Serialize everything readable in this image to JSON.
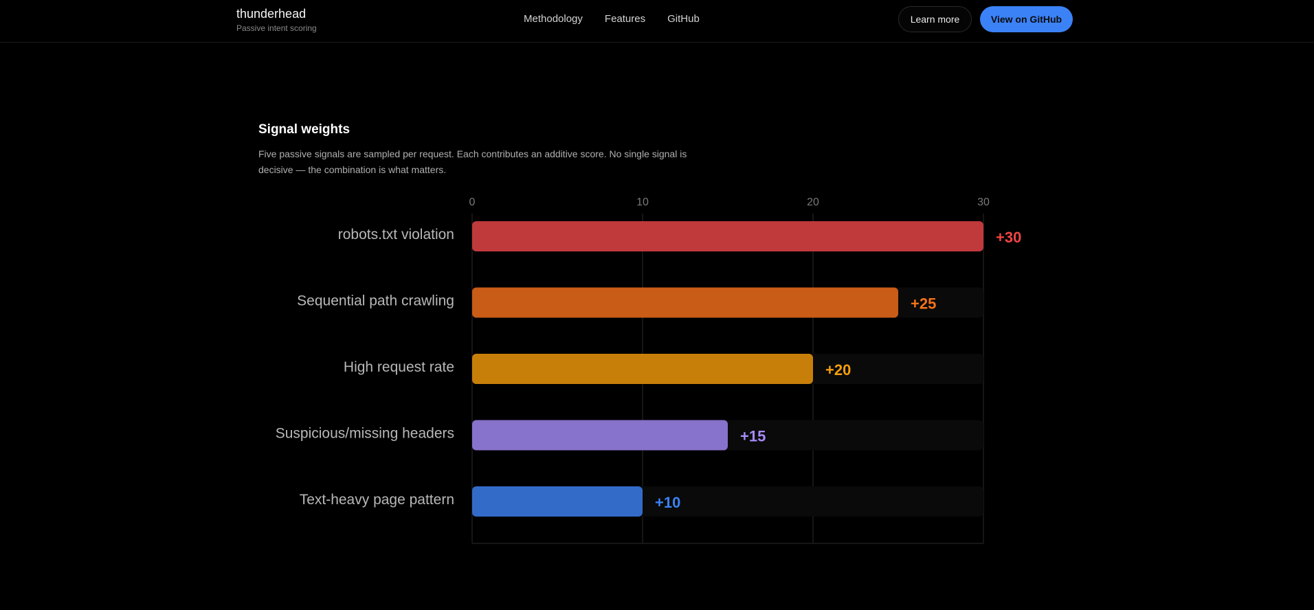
{
  "header": {
    "brand_name": "thunderhead",
    "brand_tagline": "Passive intent scoring",
    "nav": [
      "Methodology",
      "Features",
      "GitHub"
    ],
    "learn_more_label": "Learn more",
    "github_label": "View on GitHub"
  },
  "section": {
    "title": "Signal weights",
    "description": "Five passive signals are sampled per request. Each contributes an additive score. No single signal is decisive — the combination is what matters."
  },
  "chart_data": {
    "type": "bar",
    "orientation": "horizontal",
    "title": "",
    "xlabel": "",
    "ylabel": "",
    "xlim": [
      0,
      30
    ],
    "ticks": [
      0,
      10,
      20,
      30
    ],
    "grid": true,
    "categories": [
      "robots.txt violation",
      "Sequential path crawling",
      "High request rate",
      "Suspicious/missing headers",
      "Text-heavy page pattern"
    ],
    "values": [
      30,
      25,
      20,
      15,
      10
    ],
    "value_labels": [
      "+30",
      "+25",
      "+20",
      "+15",
      "+10"
    ],
    "bar_colors": [
      "#c0393b",
      "#c95c16",
      "#c87f0a",
      "#8772cc",
      "#336bc9"
    ],
    "label_colors": [
      "#ef4444",
      "#f97316",
      "#f59e0b",
      "#a78bfa",
      "#3b82f6"
    ]
  }
}
